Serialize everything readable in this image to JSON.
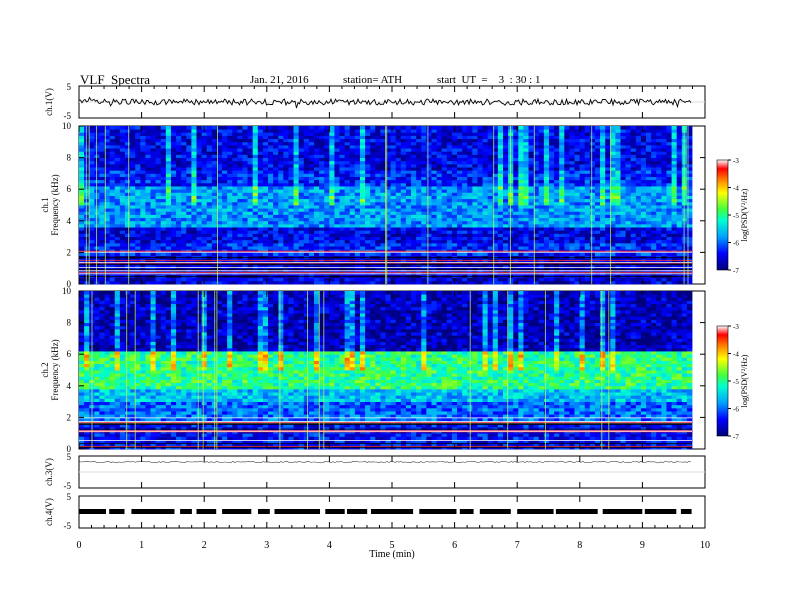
{
  "header": {
    "title": "VLF  Spectra",
    "date": "Jan. 21, 2016",
    "station": "station= ATH",
    "start": "start  UT  =    3  : 30 : 1"
  },
  "chart_data": [
    {
      "type": "line",
      "panel": "ch1",
      "ylabel": "ch.1(V)",
      "ylim": [
        -5,
        5
      ],
      "yticks": [
        "5",
        "-5"
      ],
      "xlim": [
        0,
        10
      ],
      "description_values": "noisy waveform around 0 V"
    },
    {
      "type": "heatmap",
      "panel": "ch1-spectrogram",
      "ylabel_lines": [
        "ch.1",
        "Frequency  (kHz)"
      ],
      "ylim": [
        0,
        10
      ],
      "yticks": [
        "0",
        "2",
        "4",
        "6",
        "8",
        "10"
      ],
      "xlim": [
        0,
        9.8
      ],
      "colorbar": {
        "label": "log(PSD(V²/Hz)",
        "ticks": [
          "-3",
          "-4",
          "-5",
          "-6",
          "-7"
        ],
        "range": [
          -7,
          -3
        ]
      },
      "bands_khz": [
        {
          "from": 0.0,
          "to": 1.8,
          "level": -6.6
        },
        {
          "from": 1.8,
          "to": 2.6,
          "level": -6.3
        },
        {
          "from": 2.6,
          "to": 3.6,
          "level": -6.5
        },
        {
          "from": 3.6,
          "to": 6.2,
          "level": -5.8
        },
        {
          "from": 6.2,
          "to": 7.2,
          "level": -6.3
        },
        {
          "from": 7.2,
          "to": 10.0,
          "level": -6.5
        }
      ]
    },
    {
      "type": "heatmap",
      "panel": "ch2-spectrogram",
      "ylabel_lines": [
        "ch.2",
        "Frequency  (kHz)"
      ],
      "ylim": [
        0,
        10
      ],
      "yticks": [
        "0",
        "2",
        "4",
        "6",
        "8",
        "10"
      ],
      "xlim": [
        0,
        9.8
      ],
      "colorbar": {
        "label": "log(PSD(V²/Hz)",
        "ticks": [
          "-3",
          "-4",
          "-5",
          "-6",
          "-7"
        ],
        "range": [
          -7,
          -3
        ]
      },
      "bands_khz": [
        {
          "from": 0.0,
          "to": 1.6,
          "level": -6.4
        },
        {
          "from": 1.6,
          "to": 3.0,
          "level": -6.0
        },
        {
          "from": 3.0,
          "to": 3.8,
          "level": -5.6
        },
        {
          "from": 3.8,
          "to": 6.2,
          "level": -5.0
        },
        {
          "from": 6.2,
          "to": 10.0,
          "level": -6.7
        }
      ]
    },
    {
      "type": "line",
      "panel": "ch3",
      "ylabel": "ch.3(V)",
      "ylim": [
        -5,
        5
      ],
      "yticks": [
        "5",
        "-5"
      ],
      "xlim": [
        0,
        10
      ]
    },
    {
      "type": "line",
      "panel": "ch4",
      "ylabel": "ch.4(V)",
      "ylim": [
        -5,
        5
      ],
      "yticks": [
        "5",
        "-5"
      ],
      "xlim": [
        0,
        10
      ]
    }
  ],
  "xaxis": {
    "label": "Time  (min)",
    "ticks": [
      "0",
      "1",
      "2",
      "3",
      "4",
      "5",
      "6",
      "7",
      "8",
      "9",
      "10"
    ]
  }
}
